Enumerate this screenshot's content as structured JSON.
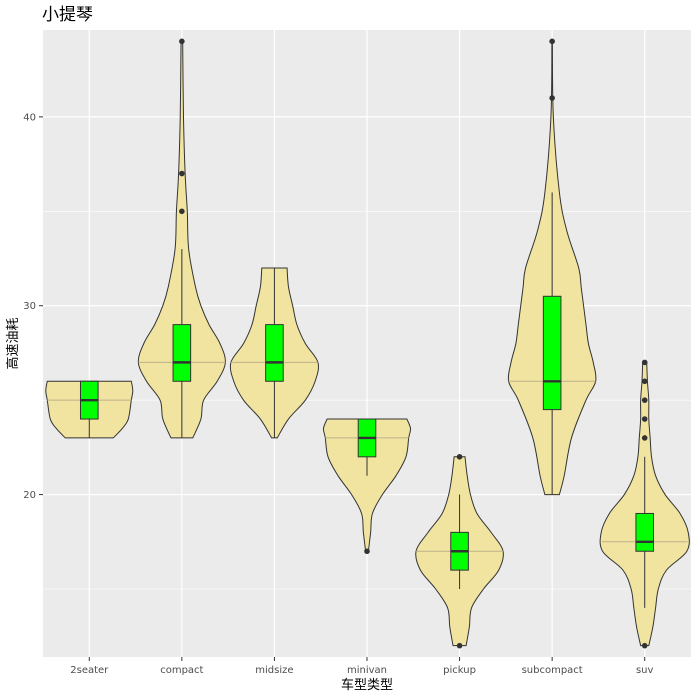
{
  "chart_data": {
    "type": "violin",
    "title": "小提琴",
    "xlabel": "车型类型",
    "ylabel": "高速油耗",
    "categories": [
      "2seater",
      "compact",
      "midsize",
      "minivan",
      "pickup",
      "subcompact",
      "suv"
    ],
    "y_ticks": [
      20,
      30,
      40
    ],
    "y_tick_labels": [
      "20",
      "30",
      "40"
    ],
    "ylim": [
      11.4,
      44.6
    ],
    "grid": true,
    "legend": "none",
    "colors": {
      "panel": "#EBEBEB",
      "grid": "#FFFFFF",
      "violin_fill": "#F0E4A0",
      "violin_stroke": "#333333",
      "box_fill": "#00FF00",
      "median": "#333333",
      "outlier": "#333333",
      "quantile_line": "#BDB28A"
    },
    "series": [
      {
        "category": "2seater",
        "box": {
          "q1": 24,
          "median": 25,
          "q3": 26,
          "whisker_low": 23,
          "whisker_high": 26
        },
        "outliers": [],
        "violin": [
          [
            23,
            0.16
          ],
          [
            23.5,
            0.22
          ],
          [
            24,
            0.26
          ],
          [
            25,
            0.28
          ],
          [
            25.5,
            0.29
          ],
          [
            26,
            0.28
          ]
        ]
      },
      {
        "category": "compact",
        "box": {
          "q1": 26,
          "median": 27,
          "q3": 29,
          "whisker_low": 23,
          "whisker_high": 33
        },
        "outliers": [
          35,
          37,
          44
        ],
        "violin": [
          [
            23,
            0.04
          ],
          [
            24,
            0.07
          ],
          [
            25,
            0.08
          ],
          [
            26,
            0.13
          ],
          [
            27,
            0.16
          ],
          [
            28,
            0.14
          ],
          [
            29,
            0.1
          ],
          [
            30,
            0.07
          ],
          [
            31,
            0.05
          ],
          [
            33,
            0.025
          ],
          [
            35,
            0.02
          ],
          [
            37,
            0.012
          ],
          [
            40,
            0.006
          ],
          [
            44,
            0.003
          ]
        ]
      },
      {
        "category": "midsize",
        "box": {
          "q1": 26,
          "median": 27,
          "q3": 29,
          "whisker_low": 23,
          "whisker_high": 32
        },
        "outliers": [],
        "violin": [
          [
            23,
            0.02
          ],
          [
            24,
            0.1
          ],
          [
            25,
            0.22
          ],
          [
            26,
            0.29
          ],
          [
            27,
            0.31
          ],
          [
            28,
            0.22
          ],
          [
            29,
            0.16
          ],
          [
            30,
            0.13
          ],
          [
            31,
            0.1
          ],
          [
            32,
            0.09
          ]
        ]
      },
      {
        "category": "minivan",
        "box": {
          "q1": 22,
          "median": 23,
          "q3": 24,
          "whisker_low": 21,
          "whisker_high": 24
        },
        "outliers": [
          17
        ],
        "violin": [
          [
            17,
            0.015
          ],
          [
            18,
            0.04
          ],
          [
            19,
            0.06
          ],
          [
            20,
            0.17
          ],
          [
            21,
            0.32
          ],
          [
            22,
            0.43
          ],
          [
            23,
            0.46
          ],
          [
            23.5,
            0.48
          ],
          [
            24,
            0.44
          ]
        ]
      },
      {
        "category": "pickup",
        "box": {
          "q1": 16,
          "median": 17,
          "q3": 18,
          "whisker_low": 15,
          "whisker_high": 20
        },
        "outliers": [
          12,
          22
        ],
        "violin": [
          [
            12,
            0.06
          ],
          [
            13,
            0.09
          ],
          [
            14,
            0.11
          ],
          [
            15,
            0.22
          ],
          [
            16,
            0.36
          ],
          [
            17,
            0.4
          ],
          [
            18,
            0.29
          ],
          [
            19,
            0.16
          ],
          [
            20,
            0.1
          ],
          [
            21,
            0.07
          ],
          [
            22,
            0.05
          ]
        ]
      },
      {
        "category": "subcompact",
        "box": {
          "q1": 24.5,
          "median": 26,
          "q3": 30.5,
          "whisker_low": 20,
          "whisker_high": 36
        },
        "outliers": [
          41,
          44
        ],
        "violin": [
          [
            20,
            0.03
          ],
          [
            21,
            0.05
          ],
          [
            23,
            0.08
          ],
          [
            25,
            0.14
          ],
          [
            26,
            0.18
          ],
          [
            27,
            0.17
          ],
          [
            28,
            0.15
          ],
          [
            29,
            0.14
          ],
          [
            30,
            0.13
          ],
          [
            31,
            0.12
          ],
          [
            32,
            0.11
          ],
          [
            34,
            0.06
          ],
          [
            36,
            0.03
          ],
          [
            40,
            0.005
          ],
          [
            44,
            0.001
          ]
        ]
      },
      {
        "category": "suv",
        "box": {
          "q1": 17,
          "median": 17.5,
          "q3": 19,
          "whisker_low": 14,
          "whisker_high": 22
        },
        "outliers": [
          12,
          23,
          24,
          25,
          26,
          27
        ],
        "violin": [
          [
            12,
            0.03
          ],
          [
            13,
            0.06
          ],
          [
            14,
            0.08
          ],
          [
            15,
            0.1
          ],
          [
            16,
            0.16
          ],
          [
            17,
            0.31
          ],
          [
            18,
            0.32
          ],
          [
            19,
            0.26
          ],
          [
            20,
            0.15
          ],
          [
            21,
            0.08
          ],
          [
            22,
            0.05
          ],
          [
            23,
            0.04
          ],
          [
            24,
            0.03
          ],
          [
            25,
            0.03
          ],
          [
            26,
            0.02
          ],
          [
            27,
            0.015
          ]
        ]
      }
    ]
  }
}
